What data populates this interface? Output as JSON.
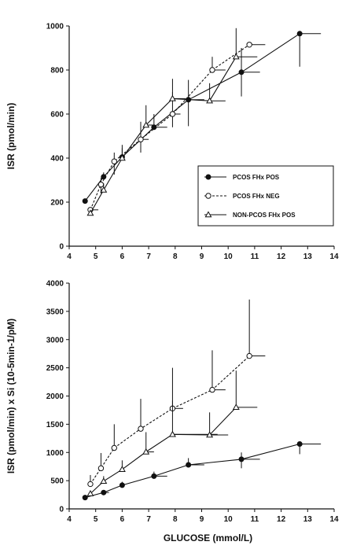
{
  "chart_data": [
    {
      "type": "line",
      "title": "",
      "ylabel": "ISR (pmol/min)",
      "xlabel": "",
      "xlim": [
        4,
        14
      ],
      "ylim": [
        0,
        1000
      ],
      "x_ticks": [
        "4",
        "5",
        "6",
        "7",
        "8",
        "9",
        "10",
        "11",
        "12",
        "13",
        "14"
      ],
      "y_ticks": [
        "0",
        "200",
        "400",
        "600",
        "800",
        "1000"
      ],
      "legend_position": "center-right",
      "series": [
        {
          "name": "PCOS FHx POS",
          "style": "solid",
          "marker": "filled-circle",
          "x": [
            4.6,
            5.3,
            6.0,
            7.2,
            8.5,
            10.5,
            12.7
          ],
          "y": [
            205,
            315,
            405,
            540,
            665,
            790,
            965
          ],
          "err_up": [
            0,
            20,
            40,
            60,
            90,
            110,
            0
          ],
          "err_down": [
            0,
            0,
            0,
            0,
            120,
            110,
            150
          ],
          "xerr_plus": [
            0,
            0,
            0,
            0.5,
            0.6,
            0.7,
            0.8
          ]
        },
        {
          "name": "PCOS FHx NEG",
          "style": "dashed",
          "marker": "open-circle",
          "x": [
            4.8,
            5.2,
            5.7,
            6.7,
            7.9,
            9.4,
            10.8
          ],
          "y": [
            165,
            280,
            385,
            485,
            600,
            800,
            915
          ],
          "err_up": [
            0,
            30,
            40,
            80,
            100,
            60,
            0
          ],
          "err_down": [
            25,
            40,
            60,
            60,
            60,
            0,
            0
          ],
          "xerr_plus": [
            0.3,
            0,
            0,
            0.3,
            0.3,
            0.5,
            0.6
          ]
        },
        {
          "name": "NON-PCOS FHx POS",
          "style": "solid",
          "marker": "open-triangle",
          "x": [
            4.8,
            5.3,
            6.0,
            6.9,
            7.9,
            9.3,
            10.3
          ],
          "y": [
            150,
            255,
            400,
            550,
            670,
            660,
            860
          ],
          "err_up": [
            0,
            30,
            60,
            90,
            90,
            80,
            130
          ],
          "err_down": [
            0,
            0,
            0,
            0,
            0,
            0,
            0
          ],
          "xerr_plus": [
            0,
            0,
            0,
            0.3,
            0.5,
            0.6,
            0.8
          ]
        }
      ]
    },
    {
      "type": "line",
      "title": "",
      "ylabel": "ISR (pmol/min) x Si (10-5min-1/pM)",
      "xlabel": "GLUCOSE (mmol/L)",
      "xlim": [
        4,
        14
      ],
      "ylim": [
        0,
        4000
      ],
      "x_ticks": [
        "4",
        "5",
        "6",
        "7",
        "8",
        "9",
        "10",
        "11",
        "12",
        "13",
        "14"
      ],
      "y_ticks": [
        "0",
        "500",
        "1000",
        "1500",
        "2000",
        "2500",
        "3000",
        "3500",
        "4000"
      ],
      "series": [
        {
          "name": "PCOS FHx POS",
          "style": "solid",
          "marker": "filled-circle",
          "x": [
            4.6,
            5.3,
            6.0,
            7.2,
            8.5,
            10.5,
            12.7
          ],
          "y": [
            200,
            290,
            420,
            580,
            780,
            880,
            1150
          ],
          "err_up": [
            0,
            40,
            60,
            80,
            120,
            120,
            0
          ],
          "err_down": [
            0,
            0,
            0,
            0,
            0,
            160,
            180
          ],
          "xerr_plus": [
            0,
            0.2,
            0,
            0.5,
            0.6,
            0.7,
            0.8
          ]
        },
        {
          "name": "PCOS FHx NEG",
          "style": "dashed",
          "marker": "open-circle",
          "x": [
            4.8,
            5.2,
            5.7,
            6.7,
            7.9,
            9.4,
            10.8
          ],
          "y": [
            440,
            720,
            1080,
            1420,
            1780,
            2110,
            2710
          ],
          "err_up": [
            160,
            270,
            420,
            530,
            720,
            700,
            1000
          ],
          "err_down": [
            0,
            0,
            0,
            0,
            0,
            0,
            0
          ],
          "xerr_plus": [
            0,
            0,
            0,
            0,
            0.4,
            0.5,
            0.6
          ]
        },
        {
          "name": "NON-PCOS FHx POS",
          "style": "solid",
          "marker": "open-triangle",
          "x": [
            4.8,
            5.3,
            6.0,
            6.9,
            7.9,
            9.3,
            10.3
          ],
          "y": [
            270,
            490,
            700,
            1010,
            1320,
            1310,
            1800
          ],
          "err_up": [
            0,
            90,
            160,
            350,
            600,
            400,
            650
          ],
          "err_down": [
            0,
            0,
            0,
            0,
            0,
            0,
            0
          ],
          "xerr_plus": [
            0,
            0,
            0,
            0.3,
            1.7,
            0.7,
            0.8
          ]
        }
      ]
    }
  ]
}
